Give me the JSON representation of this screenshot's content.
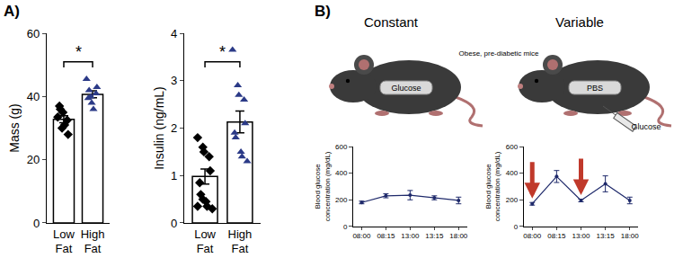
{
  "chart_data": [
    {
      "type": "bar",
      "ylabel": "Mass (g)",
      "categories": [
        "Low Fat",
        "High Fat"
      ],
      "values": [
        32.8,
        40.7
      ],
      "errors": [
        1.1,
        1.1
      ],
      "color": "#ffffff",
      "points": [
        {
          "marker": "diamond",
          "color": "#000000",
          "values": [
            33.5,
            30,
            35,
            32.5,
            28,
            37,
            36,
            31
          ]
        },
        {
          "marker": "triangle-up",
          "color": "#2b3a87",
          "values": [
            45.5,
            40,
            38,
            41,
            43,
            39.5,
            42,
            36
          ]
        }
      ],
      "ylim": [
        0,
        60
      ],
      "yticks": [
        0,
        20,
        40,
        60
      ],
      "grid": false,
      "annotations": [
        {
          "text": "*",
          "between": [
            "Low Fat",
            "High Fat"
          ]
        }
      ]
    },
    {
      "type": "bar",
      "ylabel": "Insulin (ng/mL)",
      "categories": [
        "Low Fat",
        "High Fat"
      ],
      "values": [
        0.98,
        2.13
      ],
      "errors": [
        0.16,
        0.23
      ],
      "color": "#ffffff",
      "points": [
        {
          "marker": "diamond",
          "color": "#000000",
          "values": [
            1.8,
            1.6,
            1.5,
            1.4,
            1.1,
            0.85,
            0.6,
            0.45,
            0.35,
            0.3,
            0.35,
            0.5
          ]
        },
        {
          "marker": "triangle-up",
          "color": "#2b3a87",
          "values": [
            3.65,
            2.9,
            2.7,
            2.6,
            2.1,
            1.9,
            1.8,
            1.5,
            1.4,
            1.3
          ]
        }
      ],
      "ylim": [
        0,
        4
      ],
      "yticks": [
        0,
        1,
        2,
        3,
        4
      ],
      "grid": false,
      "annotations": [
        {
          "text": "*",
          "between": [
            "Low Fat",
            "High Fat"
          ]
        }
      ]
    },
    {
      "type": "line",
      "ylabel": [
        "Blood glucose",
        "concentration (mg/dL)"
      ],
      "categories": [
        "08:00",
        "08:15",
        "13:00",
        "13:15",
        "18:00"
      ],
      "values": [
        180,
        230,
        235,
        215,
        195
      ],
      "errors": [
        10,
        15,
        35,
        15,
        25
      ],
      "color": "#1f2a6b",
      "marker": "circle",
      "ylim": [
        0,
        600
      ],
      "yticks": [
        0,
        200,
        400,
        600
      ],
      "grid": false
    },
    {
      "type": "line",
      "ylabel": [
        "Blood glucose",
        "concentration (mg/dL)"
      ],
      "categories": [
        "08:00",
        "08:15",
        "13:00",
        "13:15",
        "18:00"
      ],
      "values": [
        170,
        375,
        195,
        320,
        195
      ],
      "errors": [
        10,
        45,
        10,
        60,
        25
      ],
      "color": "#1f2a6b",
      "marker": "circle",
      "injections": [
        "08:00",
        "13:00"
      ],
      "injection_color": "#c0392b",
      "ylim": [
        0,
        600
      ],
      "yticks": [
        0,
        200,
        400,
        600
      ],
      "grid": false
    }
  ],
  "panel_labels": [
    "A)",
    "B)"
  ],
  "illustration": {
    "caption": "Obese, pre-diabetic mice",
    "mice": [
      {
        "title": "Constant",
        "label": "Glucose"
      },
      {
        "title": "Variable",
        "label": "PBS",
        "injection": "Glucose"
      }
    ]
  }
}
